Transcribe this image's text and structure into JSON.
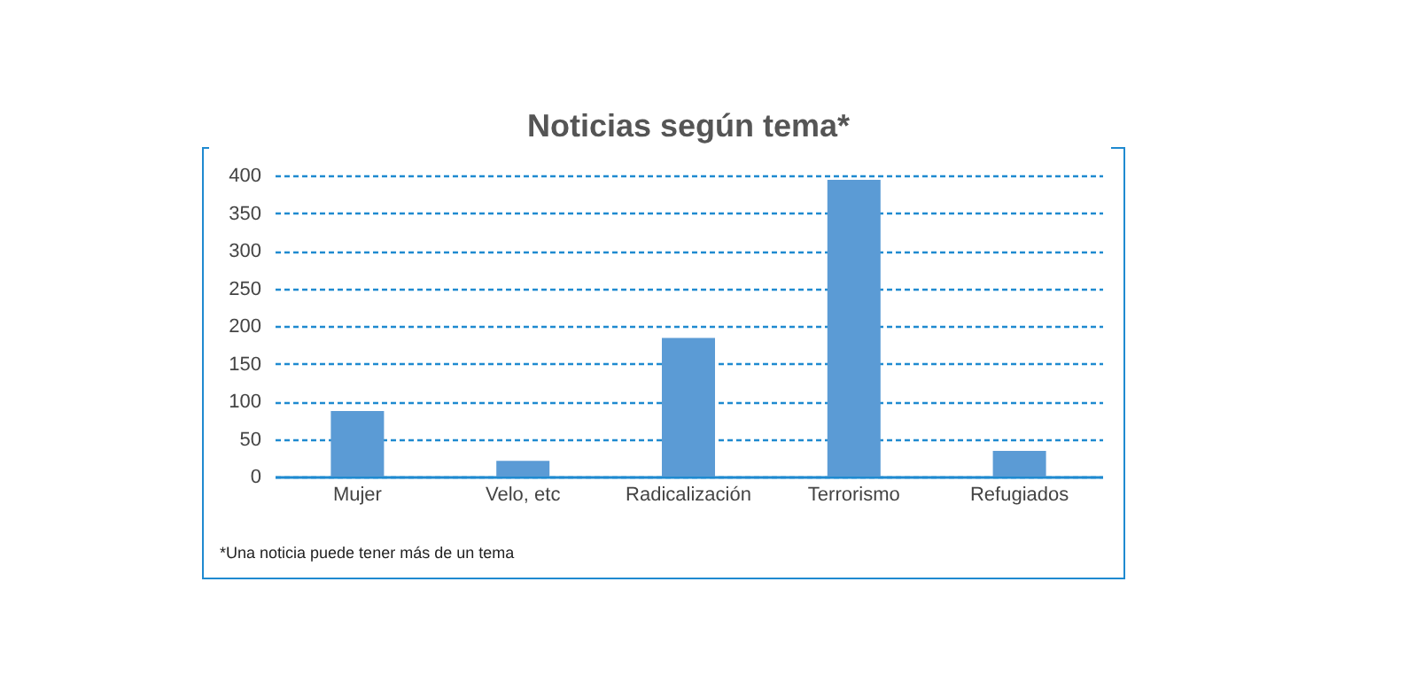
{
  "chart_data": {
    "type": "bar",
    "title": "Noticias según tema*",
    "categories": [
      "Mujer",
      "Velo, etc",
      "Radicalización",
      "Terrorismo",
      "Refugiados"
    ],
    "values": [
      87,
      21,
      184,
      394,
      34
    ],
    "color": "#5b9bd5",
    "ylim": [
      0,
      400
    ],
    "yticks": [
      0,
      50,
      100,
      150,
      200,
      250,
      300,
      350,
      400
    ],
    "grid": "y",
    "annotations": [
      "*Una noticia puede tener más de un tema"
    ]
  }
}
